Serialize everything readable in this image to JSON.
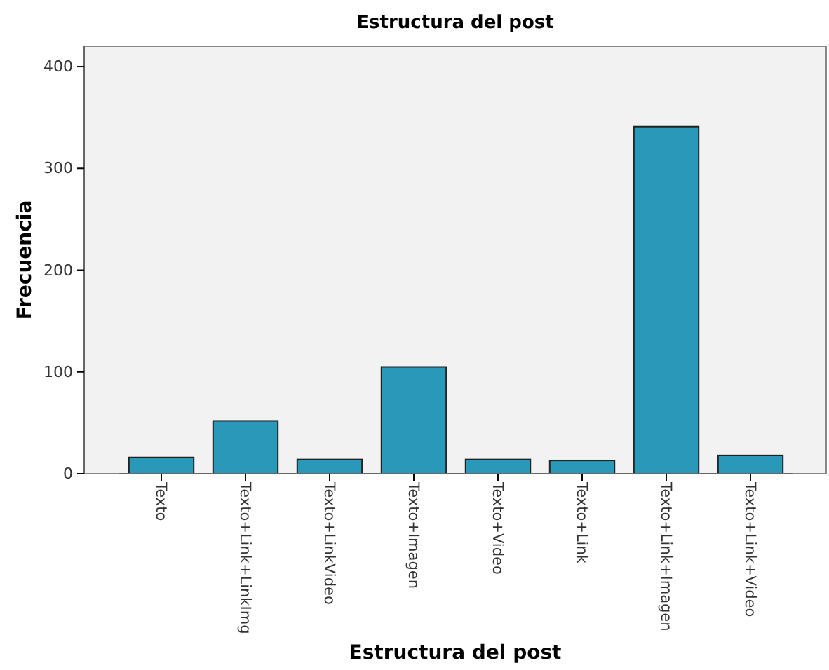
{
  "chart_data": {
    "type": "bar",
    "title": "Estructura del post",
    "xlabel": "Estructura del post",
    "ylabel": "Frecuencia",
    "categories": [
      "Texto",
      "Texto+Link+LinkImg",
      "Texto+LinkVideo",
      "Texto+Imagen",
      "Texto+Video",
      "Texto+Link",
      "Texto+Link+Imagen",
      "Texto+Link+Video"
    ],
    "values": [
      16,
      52,
      14,
      105,
      14,
      13,
      341,
      18
    ],
    "color": "#2a98b8",
    "ylim": [
      0,
      420
    ],
    "yticks": [
      0,
      100,
      200,
      300,
      400
    ],
    "grid": false
  }
}
